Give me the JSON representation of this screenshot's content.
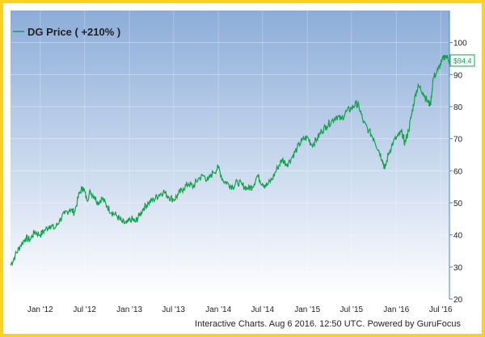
{
  "footer": "Interactive Charts. Aug 6 2016. 12:50 UTC. Powered by GuruFocus",
  "colors": {
    "frame": "#fcd21e",
    "line": "#13a04b",
    "bg_top": "#8cadd9",
    "bg_bottom": "#ffffff",
    "axis": "#4f81bd"
  },
  "chart_data": {
    "type": "line",
    "legend": {
      "label": "DG Price ( +210% )",
      "placement": "top-left"
    },
    "last_value_label": "$94.4",
    "ylim": [
      20,
      110
    ],
    "y_ticks": [
      20,
      30,
      40,
      50,
      60,
      70,
      80,
      90,
      100
    ],
    "x_range": [
      "2011-09-01",
      "2016-08-06"
    ],
    "x_ticks": [
      {
        "label": "Jan '12",
        "date": "2012-01-01"
      },
      {
        "label": "Jul '12",
        "date": "2012-07-01"
      },
      {
        "label": "Jan '13",
        "date": "2013-01-01"
      },
      {
        "label": "Jul '13",
        "date": "2013-07-01"
      },
      {
        "label": "Jan '14",
        "date": "2014-01-01"
      },
      {
        "label": "Jul '14",
        "date": "2014-07-01"
      },
      {
        "label": "Jan '15",
        "date": "2015-01-01"
      },
      {
        "label": "Jul '15",
        "date": "2015-07-01"
      },
      {
        "label": "Jan '16",
        "date": "2016-01-01"
      },
      {
        "label": "Jul '16",
        "date": "2016-07-01"
      }
    ],
    "grid": true,
    "series": [
      {
        "name": "DG Price ( +210% )",
        "points": [
          [
            "2011-09-01",
            30.5
          ],
          [
            "2011-09-20",
            33.5
          ],
          [
            "2011-10-10",
            36.5
          ],
          [
            "2011-11-01",
            39
          ],
          [
            "2011-11-20",
            38.5
          ],
          [
            "2011-12-10",
            41
          ],
          [
            "2012-01-01",
            40
          ],
          [
            "2012-01-20",
            41.5
          ],
          [
            "2012-02-10",
            43
          ],
          [
            "2012-03-01",
            42
          ],
          [
            "2012-03-20",
            44.5
          ],
          [
            "2012-04-10",
            46.5
          ],
          [
            "2012-05-01",
            48
          ],
          [
            "2012-05-20",
            47
          ],
          [
            "2012-06-10",
            53
          ],
          [
            "2012-06-25",
            55
          ],
          [
            "2012-07-10",
            51
          ],
          [
            "2012-07-25",
            53.5
          ],
          [
            "2012-08-10",
            52
          ],
          [
            "2012-08-25",
            50
          ],
          [
            "2012-09-10",
            51.5
          ],
          [
            "2012-10-01",
            49
          ],
          [
            "2012-10-20",
            47
          ],
          [
            "2012-11-10",
            46
          ],
          [
            "2012-12-01",
            44
          ],
          [
            "2012-12-20",
            43.5
          ],
          [
            "2013-01-10",
            45
          ],
          [
            "2013-01-25",
            44
          ],
          [
            "2013-02-10",
            46
          ],
          [
            "2013-03-01",
            48.5
          ],
          [
            "2013-03-20",
            50
          ],
          [
            "2013-04-10",
            51
          ],
          [
            "2013-05-01",
            52.5
          ],
          [
            "2013-05-20",
            53.5
          ],
          [
            "2013-06-10",
            52
          ],
          [
            "2013-07-01",
            51
          ],
          [
            "2013-07-20",
            52.5
          ],
          [
            "2013-08-10",
            54.5
          ],
          [
            "2013-09-01",
            56
          ],
          [
            "2013-09-20",
            55
          ],
          [
            "2013-10-10",
            57.5
          ],
          [
            "2013-11-01",
            58.5
          ],
          [
            "2013-11-20",
            57
          ],
          [
            "2013-12-10",
            59.5
          ],
          [
            "2014-01-01",
            61
          ],
          [
            "2014-01-20",
            57
          ],
          [
            "2014-02-10",
            56
          ],
          [
            "2014-03-01",
            55
          ],
          [
            "2014-03-20",
            56.5
          ],
          [
            "2014-04-10",
            55.5
          ],
          [
            "2014-05-01",
            54.5
          ],
          [
            "2014-05-20",
            55
          ],
          [
            "2014-06-10",
            58.5
          ],
          [
            "2014-07-01",
            56
          ],
          [
            "2014-07-20",
            55.5
          ],
          [
            "2014-08-10",
            57.5
          ],
          [
            "2014-09-01",
            61
          ],
          [
            "2014-09-20",
            63.5
          ],
          [
            "2014-10-10",
            62
          ],
          [
            "2014-11-01",
            64.5
          ],
          [
            "2014-11-20",
            67
          ],
          [
            "2014-12-10",
            69.5
          ],
          [
            "2015-01-01",
            70.5
          ],
          [
            "2015-01-20",
            68
          ],
          [
            "2015-02-10",
            70
          ],
          [
            "2015-03-01",
            72.5
          ],
          [
            "2015-03-20",
            74
          ],
          [
            "2015-04-10",
            75.5
          ],
          [
            "2015-05-01",
            77
          ],
          [
            "2015-05-20",
            76
          ],
          [
            "2015-06-10",
            78.5
          ],
          [
            "2015-07-01",
            79.5
          ],
          [
            "2015-07-20",
            81
          ],
          [
            "2015-08-01",
            80
          ],
          [
            "2015-08-20",
            75
          ],
          [
            "2015-09-10",
            72.5
          ],
          [
            "2015-10-01",
            70
          ],
          [
            "2015-10-20",
            66.5
          ],
          [
            "2015-11-05",
            63.5
          ],
          [
            "2015-11-15",
            60.5
          ],
          [
            "2015-12-01",
            65.5
          ],
          [
            "2015-12-20",
            69
          ],
          [
            "2016-01-10",
            71
          ],
          [
            "2016-01-25",
            72
          ],
          [
            "2016-02-05",
            68.5
          ],
          [
            "2016-02-20",
            72.5
          ],
          [
            "2016-03-05",
            78
          ],
          [
            "2016-03-20",
            84
          ],
          [
            "2016-04-01",
            86.5
          ],
          [
            "2016-04-20",
            84.5
          ],
          [
            "2016-05-05",
            82
          ],
          [
            "2016-05-20",
            80.5
          ],
          [
            "2016-06-01",
            89
          ],
          [
            "2016-06-20",
            91.5
          ],
          [
            "2016-07-05",
            94
          ],
          [
            "2016-07-20",
            96
          ],
          [
            "2016-08-06",
            94.4
          ]
        ]
      }
    ]
  }
}
